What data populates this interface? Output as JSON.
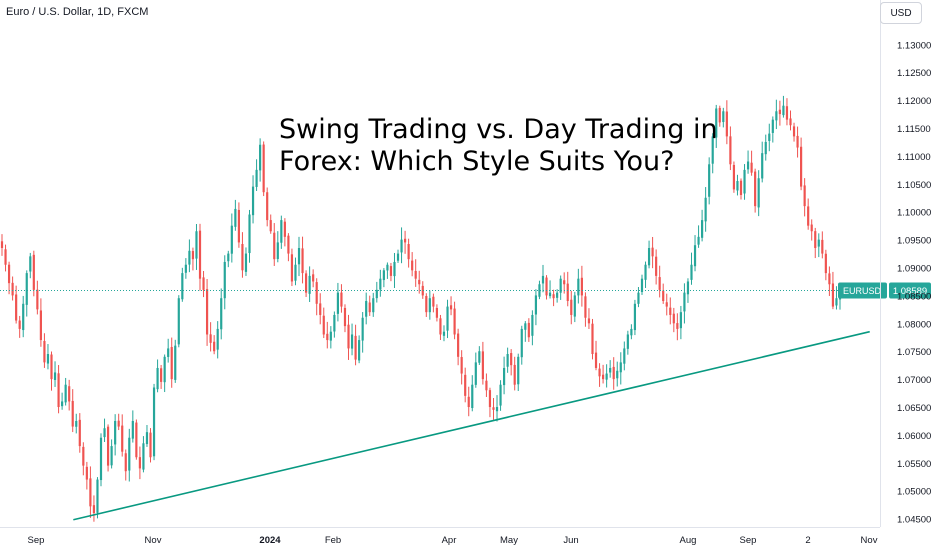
{
  "header": {
    "symbol_info": "Euro / U.S. Dollar, 1D, FXCM",
    "currency_label": "USD"
  },
  "headline": {
    "line1": "Swing Trading vs. Day Trading in",
    "line2": "Forex: Which Style Suits You?"
  },
  "price_label": {
    "symbol": "EURUSD",
    "value": "1.08589",
    "price": 1.08589
  },
  "colors": {
    "up": "#26a69a",
    "down": "#ef5350",
    "trendline": "#089981",
    "axis_text": "#131722",
    "label_bg": "#26a69a"
  },
  "chart_data": {
    "type": "candlestick",
    "ylim": [
      1.0435,
      1.134
    ],
    "y_ticks": [
      "1.13000",
      "1.12500",
      "1.12000",
      "1.11500",
      "1.11000",
      "1.10500",
      "1.10000",
      "1.09500",
      "1.09000",
      "1.08500",
      "1.08000",
      "1.07500",
      "1.07000",
      "1.06500",
      "1.06000",
      "1.05500",
      "1.05000",
      "1.04500"
    ],
    "x_ticks": [
      "Sep",
      "Nov",
      "2024",
      "Feb",
      "Apr",
      "May",
      "Jun",
      "Aug",
      "Sep",
      "2",
      "Nov"
    ],
    "x_tick_bold": [
      false,
      false,
      true,
      false,
      false,
      false,
      false,
      false,
      false,
      false,
      false
    ],
    "trendline": {
      "start": {
        "date": "2023-10-03",
        "price": 1.0448
      },
      "end": {
        "date": "2024-11-08",
        "price": 1.0785
      }
    },
    "close_series": [
      1.0935,
      1.0905,
      1.0872,
      1.085,
      1.0805,
      1.079,
      1.0835,
      1.089,
      1.092,
      1.086,
      1.0825,
      1.077,
      1.073,
      1.0745,
      1.07,
      1.0712,
      1.065,
      1.066,
      1.069,
      1.066,
      1.0615,
      1.0625,
      1.058,
      1.0545,
      1.052,
      1.0472,
      1.046,
      1.052,
      1.0595,
      1.0612,
      1.0545,
      1.058,
      1.0625,
      1.0615,
      1.057,
      1.0535,
      1.0595,
      1.0625,
      1.056,
      1.054,
      1.0585,
      1.0605,
      1.056,
      1.0685,
      1.072,
      1.0695,
      1.074,
      1.0755,
      1.07,
      1.076,
      1.0845,
      1.089,
      1.0905,
      1.093,
      1.0915,
      1.0965,
      1.088,
      1.086,
      1.078,
      1.0765,
      1.075,
      1.079,
      1.0845,
      1.091,
      1.0925,
      1.0975,
      1.1005,
      1.0945,
      1.0895,
      1.0925,
      1.0995,
      1.1045,
      1.1075,
      1.112,
      1.1035,
      1.0985,
      1.0965,
      1.0915,
      1.0945,
      1.0985,
      1.0955,
      1.0925,
      1.0875,
      1.0905,
      1.0935,
      1.089,
      1.0855,
      1.0885,
      1.0875,
      1.0835,
      1.0815,
      1.078,
      1.077,
      1.0785,
      1.0815,
      1.0855,
      1.083,
      1.0795,
      1.0755,
      1.078,
      1.0735,
      1.077,
      1.081,
      1.084,
      1.082,
      1.0845,
      1.086,
      1.088,
      1.0895,
      1.0905,
      1.0885,
      1.091,
      1.0925,
      1.095,
      1.0945,
      1.0915,
      1.0895,
      1.088,
      1.087,
      1.085,
      1.082,
      1.0845,
      1.083,
      1.081,
      1.078,
      1.0785,
      1.083,
      1.0825,
      1.078,
      1.074,
      1.071,
      1.067,
      1.065,
      1.069,
      1.073,
      1.075,
      1.07,
      1.068,
      1.065,
      1.0645,
      1.065,
      1.069,
      1.072,
      1.0745,
      1.0725,
      1.069,
      1.074,
      1.079,
      1.08,
      1.0775,
      1.0815,
      1.085,
      1.087,
      1.0885,
      1.085,
      1.0855,
      1.0845,
      1.0855,
      1.088,
      1.087,
      1.084,
      1.0815,
      1.085,
      1.088,
      1.085,
      1.081,
      1.08,
      1.0745,
      1.072,
      1.0705,
      1.07,
      1.071,
      1.072,
      1.07,
      1.0715,
      1.073,
      1.0755,
      1.078,
      1.079,
      1.0835,
      1.0855,
      1.088,
      1.0905,
      1.0935,
      1.092,
      1.0885,
      1.086,
      1.084,
      1.083,
      1.0815,
      1.08,
      1.079,
      1.082,
      1.0855,
      1.0875,
      1.0905,
      1.094,
      1.0955,
      1.0985,
      1.1025,
      1.1085,
      1.1135,
      1.1185,
      1.116,
      1.118,
      1.1135,
      1.1085,
      1.104,
      1.1055,
      1.103,
      1.1075,
      1.109,
      1.107,
      1.101,
      1.106,
      1.1105,
      1.1125,
      1.114,
      1.1165,
      1.118,
      1.1175,
      1.119,
      1.1165,
      1.1155,
      1.1135,
      1.1115,
      1.1045,
      1.101,
      1.0975,
      1.0965,
      1.0935,
      1.095,
      1.0925,
      1.089,
      1.087,
      1.083,
      1.0845,
      1.0859
    ]
  }
}
